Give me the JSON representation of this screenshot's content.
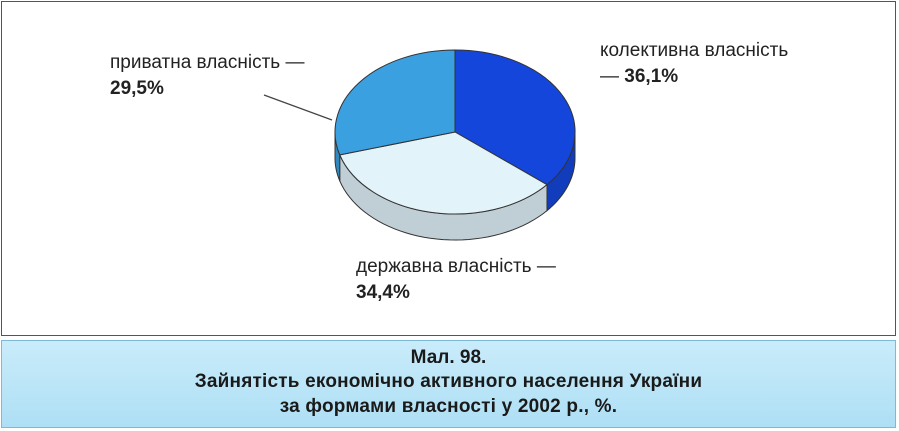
{
  "chart_data": {
    "type": "pie3d",
    "figure_label": "Мал. 98.",
    "title": [
      "Зайнятість економічно активного населення України",
      "за формами власності у 2002 р., %."
    ],
    "categories": [
      "колективна власність",
      "державна власність",
      "приватна власність"
    ],
    "values": [
      36.1,
      34.4,
      29.5
    ],
    "value_labels": [
      "36,1%",
      "34,4%",
      "29,5%"
    ],
    "separator": "—",
    "colors": [
      "#1446dc",
      "#e2f3fa",
      "#3aa0e0"
    ]
  }
}
